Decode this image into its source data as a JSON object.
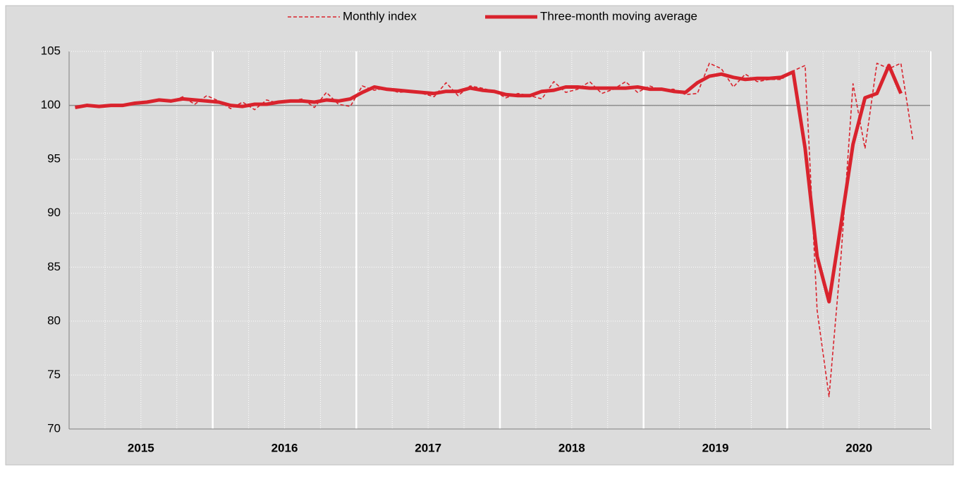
{
  "chart_data": {
    "type": "line",
    "year_labels": [
      "2015",
      "2016",
      "2017",
      "2018",
      "2019",
      "2020"
    ],
    "series": [
      {
        "name": "Monthly index",
        "color": "#d9232d",
        "style": "dashed",
        "values": [
          99.8,
          100.1,
          99.9,
          100.0,
          100.1,
          100.2,
          100.4,
          100.5,
          100.3,
          100.8,
          100.1,
          100.9,
          100.4,
          99.7,
          100.3,
          99.6,
          100.5,
          100.2,
          100.4,
          100.6,
          99.8,
          101.2,
          100.1,
          99.9,
          101.8,
          101.4,
          101.6,
          101.2,
          101.3,
          101.1,
          100.8,
          102.1,
          100.9,
          101.8,
          101.6,
          101.3,
          100.7,
          101.1,
          100.9,
          100.6,
          102.2,
          101.2,
          101.5,
          102.2,
          101.1,
          101.5,
          102.2,
          101.2,
          101.8,
          101.4,
          101.5,
          101.0,
          101.1,
          103.9,
          103.4,
          101.7,
          102.9,
          102.2,
          102.4,
          102.4,
          103.2,
          103.7,
          81.0,
          73.0,
          86.0,
          102.0,
          96.0,
          103.9,
          103.4,
          103.9,
          96.8
        ]
      },
      {
        "name": "Three-month moving average",
        "color": "#d9232d",
        "style": "solid",
        "values": [
          99.8,
          100.0,
          99.9,
          100.0,
          100.0,
          100.2,
          100.3,
          100.5,
          100.4,
          100.6,
          100.5,
          100.4,
          100.3,
          100.0,
          99.9,
          100.1,
          100.1,
          100.3,
          100.4,
          100.4,
          100.3,
          100.5,
          100.4,
          100.6,
          101.2,
          101.7,
          101.5,
          101.4,
          101.3,
          101.2,
          101.1,
          101.3,
          101.3,
          101.6,
          101.4,
          101.3,
          101.0,
          100.9,
          100.9,
          101.3,
          101.4,
          101.7,
          101.7,
          101.6,
          101.6,
          101.6,
          101.6,
          101.7,
          101.5,
          101.5,
          101.3,
          101.2,
          102.1,
          102.7,
          102.9,
          102.6,
          102.4,
          102.5,
          102.5,
          102.6,
          103.1,
          96.0,
          86.0,
          81.8,
          89.0,
          96.4,
          100.7,
          101.1,
          103.7,
          101.1,
          null
        ]
      }
    ],
    "ylim": [
      70,
      105
    ],
    "yticks": [
      70,
      75,
      80,
      85,
      90,
      95,
      100,
      105
    ],
    "reference_line": 100,
    "grid": true,
    "legend": "top"
  }
}
